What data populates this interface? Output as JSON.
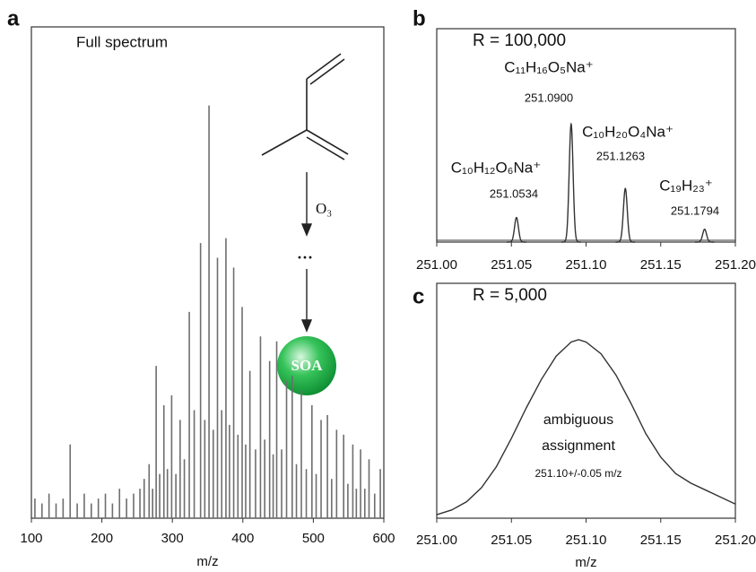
{
  "chart_data": [
    {
      "type": "spectrum",
      "panel": "a",
      "title": "Full spectrum",
      "xlabel": "m/z",
      "x": [
        105,
        115,
        125,
        135,
        145,
        155,
        165,
        175,
        185,
        195,
        205,
        215,
        225,
        235,
        245,
        254,
        260,
        267,
        272,
        277,
        282,
        288,
        293,
        299,
        305,
        311,
        317,
        324,
        331,
        340,
        346,
        352,
        358,
        364,
        370,
        376,
        381,
        387,
        393,
        399,
        404,
        410,
        418,
        425,
        431,
        438,
        443,
        448,
        455,
        462,
        470,
        476,
        483,
        490,
        498,
        504,
        511,
        520,
        526,
        533,
        543,
        549,
        556,
        561,
        567,
        573,
        579,
        587,
        595
      ],
      "values": [
        4,
        3,
        5,
        3,
        4,
        15,
        3,
        5,
        3,
        4,
        5,
        3,
        6,
        4,
        5,
        6,
        8,
        11,
        6,
        31,
        9,
        23,
        10,
        25,
        9,
        20,
        12,
        42,
        22,
        56,
        20,
        84,
        18,
        53,
        22,
        57,
        19,
        51,
        17,
        43,
        15,
        30,
        14,
        37,
        16,
        32,
        13,
        36,
        14,
        28,
        29,
        11,
        26,
        10,
        23,
        9,
        20,
        21,
        8,
        18,
        17,
        7,
        15,
        6,
        14,
        6,
        12,
        5,
        10
      ],
      "xlim": [
        100,
        600
      ],
      "xticks": [
        100,
        200,
        300,
        400,
        500,
        600
      ],
      "ylim": [
        0,
        100
      ],
      "color": "#6e6e6e",
      "annotations": [
        "O₃",
        "···",
        "SOA"
      ]
    },
    {
      "type": "peaks",
      "panel": "b",
      "annotation": "R = 100,000",
      "x": [
        251.0534,
        251.09,
        251.1263,
        251.1794
      ],
      "x_labels": [
        "251.0534",
        "251.0900",
        "251.1263",
        "251.1794"
      ],
      "formulas": [
        "C₁₀H₁₂O₆Na⁺",
        "C₁₁H₁₆O₅Na⁺",
        "C₁₀H₂₀O₄Na⁺",
        "C₁₉H₂₃⁺"
      ],
      "values": [
        11.5,
        55.3,
        25.1,
        6.0
      ],
      "xlim": [
        251.0,
        251.2
      ],
      "xticks": [
        {
          "value": 251.0,
          "label": "251.00"
        },
        {
          "value": 251.05,
          "label": "251.05"
        },
        {
          "value": 251.1,
          "label": "251.10"
        },
        {
          "value": 251.15,
          "label": "251.15"
        },
        {
          "value": 251.2,
          "label": "251.20"
        }
      ],
      "ylim": [
        0,
        100
      ],
      "color": "#333333"
    },
    {
      "type": "line",
      "panel": "c",
      "annotation": "R = 5,000",
      "xlabel": "m/z",
      "notes": [
        "ambiguous",
        "assignment",
        "251.10+/-0.05 m/z"
      ],
      "x": [
        251.0,
        251.01,
        251.02,
        251.03,
        251.04,
        251.05,
        251.06,
        251.07,
        251.08,
        251.09,
        251.095,
        251.1,
        251.11,
        251.12,
        251.13,
        251.14,
        251.15,
        251.16,
        251.17,
        251.18,
        251.19,
        251.2
      ],
      "values": [
        1.5,
        3.5,
        7,
        13,
        22,
        34,
        47,
        59,
        69,
        75,
        76,
        75,
        70,
        61,
        49,
        36,
        26,
        19,
        15,
        12,
        9,
        6
      ],
      "xlim": [
        251.0,
        251.2
      ],
      "xticks": [
        {
          "value": 251.0,
          "label": "251.00"
        },
        {
          "value": 251.05,
          "label": "251.05"
        },
        {
          "value": 251.1,
          "label": "251.10"
        },
        {
          "value": 251.15,
          "label": "251.15"
        },
        {
          "value": 251.2,
          "label": "251.20"
        }
      ],
      "ylim": [
        0,
        100
      ],
      "color": "#333333"
    }
  ]
}
